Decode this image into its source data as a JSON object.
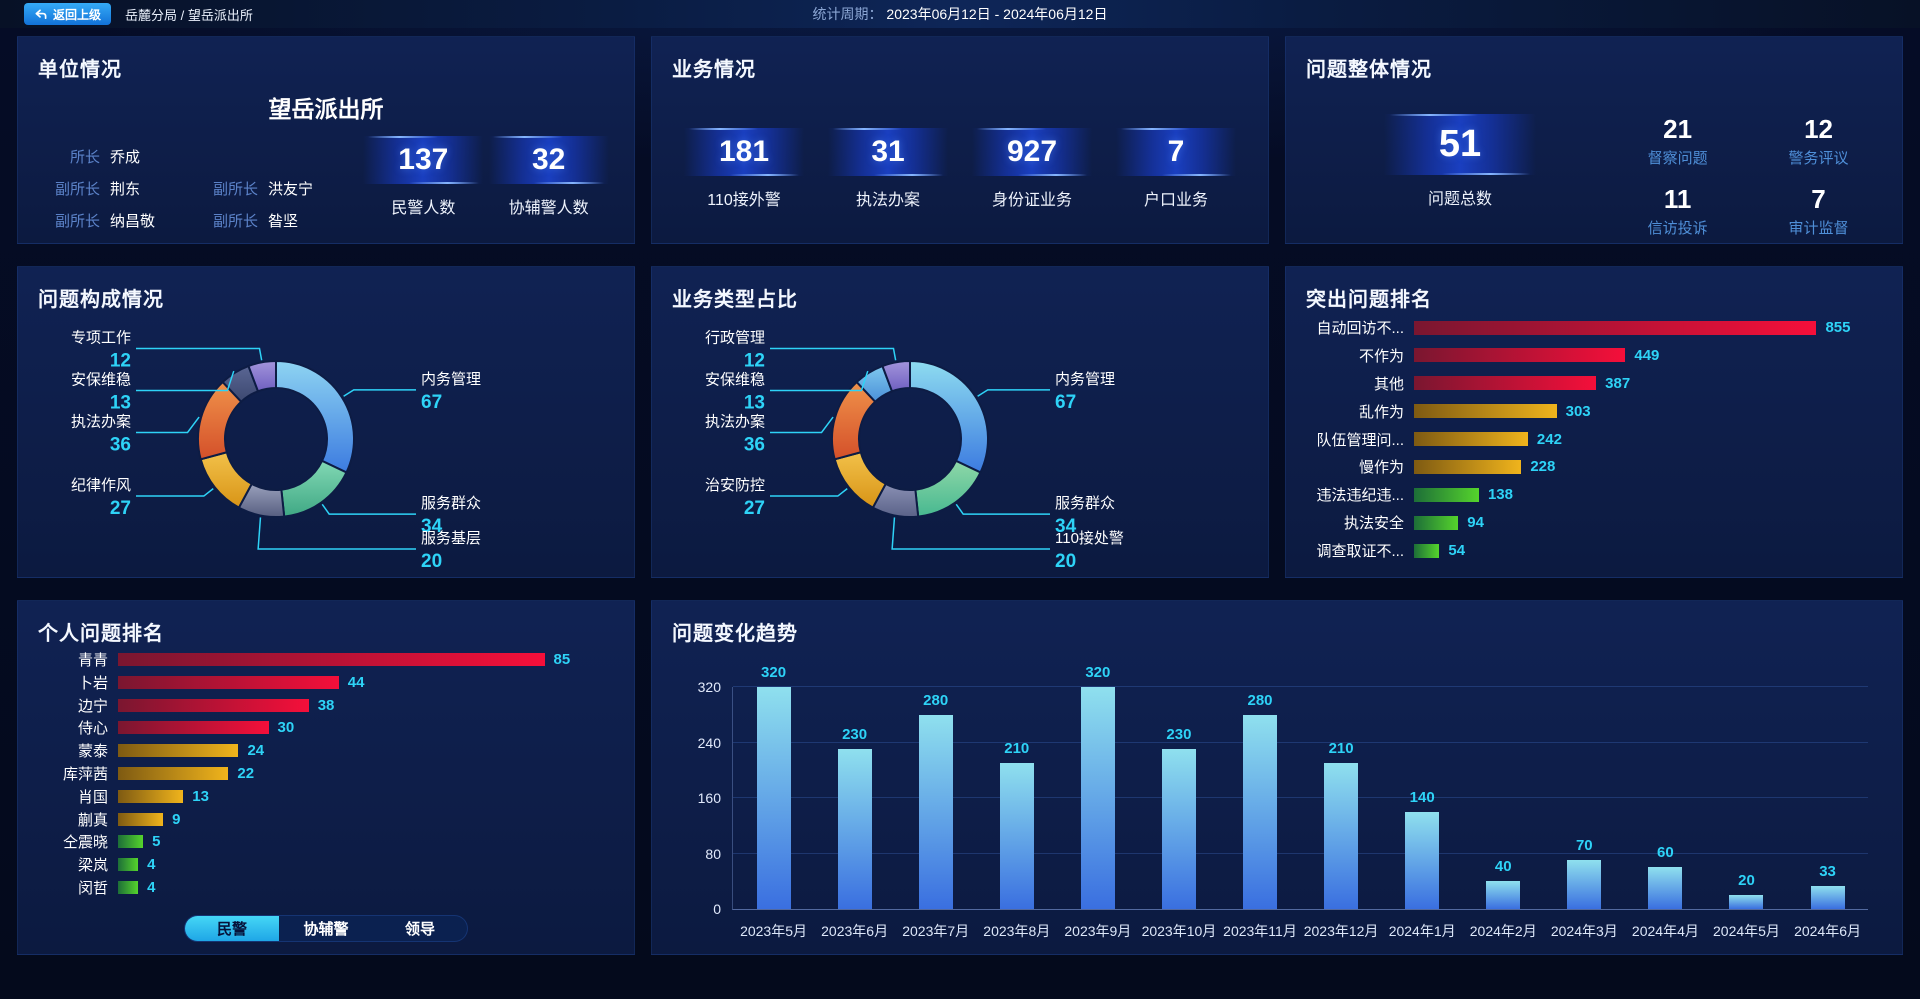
{
  "header": {
    "back_button": "返回上级",
    "breadcrumb": "岳麓分局 / 望岳派出所",
    "period_label": "统计周期：",
    "period_value": "2023年06月12日 - 2024年06月12日"
  },
  "panels": {
    "unit": {
      "title": "单位情况",
      "station_name": "望岳派出所",
      "leader_rows": [
        [
          {
            "role": "所长",
            "name": "乔成"
          }
        ],
        [
          {
            "role": "副所长",
            "name": "荆东"
          },
          {
            "role": "副所长",
            "name": "洪友宁"
          }
        ],
        [
          {
            "role": "副所长",
            "name": "纳昌敬"
          },
          {
            "role": "副所长",
            "name": "昝坚"
          }
        ]
      ],
      "stats": [
        {
          "value": "137",
          "label": "民警人数"
        },
        {
          "value": "32",
          "label": "协辅警人数"
        }
      ]
    },
    "business": {
      "title": "业务情况",
      "stats": [
        {
          "value": "181",
          "label": "110接外警"
        },
        {
          "value": "31",
          "label": "执法办案"
        },
        {
          "value": "927",
          "label": "身份证业务"
        },
        {
          "value": "7",
          "label": "户口业务"
        }
      ]
    },
    "problem": {
      "title": "问题整体情况",
      "total": {
        "value": "51",
        "label": "问题总数"
      },
      "stats": [
        {
          "value": "21",
          "label": "督察问题"
        },
        {
          "value": "12",
          "label": "警务评议"
        },
        {
          "value": "11",
          "label": "信访投诉"
        },
        {
          "value": "7",
          "label": "审计监督"
        }
      ]
    }
  },
  "chart_data": [
    {
      "id": "problem-composition",
      "type": "pie",
      "title": "问题构成情况",
      "donut": true,
      "slices": [
        {
          "name": "内务管理",
          "value": 67,
          "colors": [
            "#8ed4f2",
            "#3c7be0"
          ]
        },
        {
          "name": "服务群众",
          "value": 34,
          "colors": [
            "#82d8b4",
            "#3fa884"
          ]
        },
        {
          "name": "服务基层",
          "value": 20,
          "colors": [
            "#9aa0bc",
            "#565e80"
          ]
        },
        {
          "name": "纪律作风",
          "value": 27,
          "colors": [
            "#f2c14a",
            "#d89416"
          ]
        },
        {
          "name": "执法办案",
          "value": 36,
          "colors": [
            "#f0924a",
            "#d4502a"
          ]
        },
        {
          "name": "安保维稳",
          "value": 13,
          "colors": [
            "#5a6694",
            "#3c4870"
          ]
        },
        {
          "name": "专项工作",
          "value": 12,
          "colors": [
            "#a395dc",
            "#6f5fc0"
          ]
        }
      ]
    },
    {
      "id": "business-type",
      "type": "pie",
      "title": "业务类型占比",
      "donut": true,
      "slices": [
        {
          "name": "内务管理",
          "value": 67,
          "colors": [
            "#8edcf0",
            "#3c7be0"
          ]
        },
        {
          "name": "服务群众",
          "value": 34,
          "colors": [
            "#8fd8a8",
            "#47b890"
          ]
        },
        {
          "name": "110接处警",
          "value": 20,
          "colors": [
            "#8a90b4",
            "#5a6288"
          ]
        },
        {
          "name": "治安防控",
          "value": 27,
          "colors": [
            "#f2c14a",
            "#d89416"
          ]
        },
        {
          "name": "执法办案",
          "value": 36,
          "colors": [
            "#f0924a",
            "#d4502a"
          ]
        },
        {
          "name": "安保维稳",
          "value": 13,
          "colors": [
            "#7fc8ee",
            "#4a90d8"
          ]
        },
        {
          "name": "行政管理",
          "value": 12,
          "colors": [
            "#a395dc",
            "#6f5fc0"
          ]
        }
      ]
    },
    {
      "id": "top-problems",
      "type": "bar",
      "orientation": "horizontal",
      "title": "突出问题排名",
      "bars": [
        {
          "label": "自动回访不...",
          "value": 855,
          "colors": [
            "#7a1630",
            "#f50f3a"
          ]
        },
        {
          "label": "不作为",
          "value": 449,
          "colors": [
            "#7a1630",
            "#f50f3a"
          ]
        },
        {
          "label": "其他",
          "value": 387,
          "colors": [
            "#7a1630",
            "#f50f3a"
          ]
        },
        {
          "label": "乱作为",
          "value": 303,
          "colors": [
            "#7e5a12",
            "#f0b41c"
          ]
        },
        {
          "label": "队伍管理问...",
          "value": 242,
          "colors": [
            "#7e5a12",
            "#f0b41c"
          ]
        },
        {
          "label": "慢作为",
          "value": 228,
          "colors": [
            "#7e5a12",
            "#f0b41c"
          ]
        },
        {
          "label": "违法违纪违...",
          "value": 138,
          "colors": [
            "#1d6e38",
            "#55d42c"
          ]
        },
        {
          "label": "执法安全",
          "value": 94,
          "colors": [
            "#1d6e38",
            "#55d42c"
          ]
        },
        {
          "label": "调查取证不...",
          "value": 54,
          "colors": [
            "#1d6e38",
            "#55d42c"
          ]
        }
      ]
    },
    {
      "id": "personal-ranking",
      "type": "bar",
      "orientation": "horizontal",
      "title": "个人问题排名",
      "bars": [
        {
          "label": "青青",
          "value": 85,
          "colors": [
            "#7a1630",
            "#f50f3a"
          ]
        },
        {
          "label": "卜岩",
          "value": 44,
          "colors": [
            "#7a1630",
            "#f50f3a"
          ]
        },
        {
          "label": "边宁",
          "value": 38,
          "colors": [
            "#7a1630",
            "#f50f3a"
          ]
        },
        {
          "label": "侍心",
          "value": 30,
          "colors": [
            "#7a1630",
            "#f50f3a"
          ]
        },
        {
          "label": "蒙泰",
          "value": 24,
          "colors": [
            "#7e5a12",
            "#f0b41c"
          ]
        },
        {
          "label": "库萍茜",
          "value": 22,
          "colors": [
            "#7e5a12",
            "#f0b41c"
          ]
        },
        {
          "label": "肖国",
          "value": 13,
          "colors": [
            "#7e5a12",
            "#f0b41c"
          ]
        },
        {
          "label": "蒯真",
          "value": 9,
          "colors": [
            "#7e5a12",
            "#f0b41c"
          ]
        },
        {
          "label": "仝震晓",
          "value": 5,
          "colors": [
            "#1d6e38",
            "#55d42c"
          ]
        },
        {
          "label": "梁岚",
          "value": 4,
          "colors": [
            "#1d6e38",
            "#55d42c"
          ]
        },
        {
          "label": "闵哲",
          "value": 4,
          "colors": [
            "#1d6e38",
            "#55d42c"
          ]
        }
      ],
      "tabs": [
        {
          "label": "民警",
          "active": true
        },
        {
          "label": "协辅警",
          "active": false
        },
        {
          "label": "领导",
          "active": false
        }
      ]
    },
    {
      "id": "problem-trend",
      "type": "bar",
      "orientation": "vertical",
      "title": "问题变化趋势",
      "categories": [
        "2023年5月",
        "2023年6月",
        "2023年7月",
        "2023年8月",
        "2023年9月",
        "2023年10月",
        "2023年11月",
        "2023年12月",
        "2024年1月",
        "2024年2月",
        "2024年3月",
        "2024年4月",
        "2024年5月",
        "2024年6月"
      ],
      "values": [
        320,
        230,
        280,
        210,
        320,
        230,
        280,
        210,
        140,
        40,
        70,
        60,
        20,
        33
      ],
      "yticks": [
        0,
        80,
        160,
        240,
        320
      ],
      "ylim": [
        0,
        320
      ],
      "grid": true,
      "bar_gradient": [
        "#8fe0ee",
        "#3a6fe0"
      ],
      "value_color": "#2ed3f7"
    }
  ],
  "colors": {
    "accent_cyan": "#2ed3f7",
    "label_blue": "#5b82c8",
    "panel_background": "#0d1c44",
    "button_blue": "#1e88e5"
  }
}
